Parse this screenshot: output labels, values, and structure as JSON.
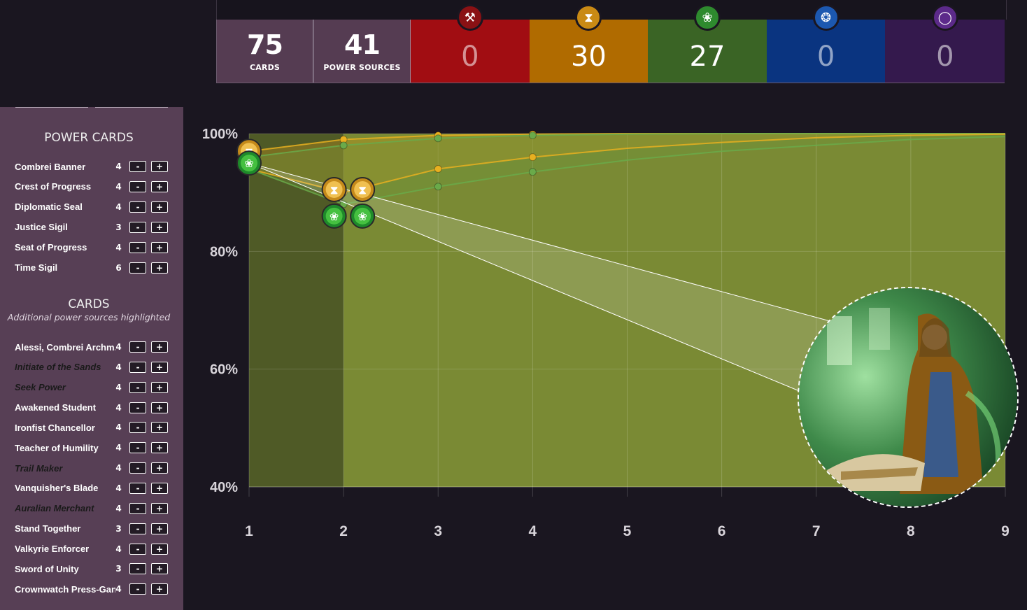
{
  "stats": {
    "cards": {
      "value": "75",
      "label": "CARDS"
    },
    "power_sources": {
      "value": "41",
      "label": "POWER SOURCES"
    }
  },
  "factions": [
    {
      "name": "fire",
      "icon": "hammer-icon",
      "count": "0",
      "color": "#a10d12",
      "icon_color": "#8a1114"
    },
    {
      "name": "time",
      "icon": "hourglass-icon",
      "count": "30",
      "color": "#b06b00",
      "icon_color": "#c98a14"
    },
    {
      "name": "justice",
      "icon": "wings-icon",
      "count": "27",
      "color": "#3a6425",
      "icon_color": "#2e8a2e"
    },
    {
      "name": "primal",
      "icon": "paw-icon",
      "count": "0",
      "color": "#0a3480",
      "icon_color": "#1c58b0"
    },
    {
      "name": "shadow",
      "icon": "moon-icon",
      "count": "0",
      "color": "#34194d",
      "icon_color": "#5c2a8a"
    }
  ],
  "sidebar": {
    "power_title": "POWER CARDS",
    "power_cards": [
      {
        "name": "Combrei Banner",
        "count": "4",
        "italic": false
      },
      {
        "name": "Crest of Progress",
        "count": "4",
        "italic": false
      },
      {
        "name": "Diplomatic Seal",
        "count": "4",
        "italic": false
      },
      {
        "name": "Justice Sigil",
        "count": "3",
        "italic": false
      },
      {
        "name": "Seat of Progress",
        "count": "4",
        "italic": false
      },
      {
        "name": "Time Sigil",
        "count": "6",
        "italic": false
      }
    ],
    "cards_title": "CARDS",
    "cards_subtitle": "Additional power sources highlighted",
    "cards": [
      {
        "name": "Alessi, Combrei Archm...",
        "count": "4",
        "italic": false
      },
      {
        "name": "Initiate of the Sands",
        "count": "4",
        "italic": true
      },
      {
        "name": "Seek Power",
        "count": "4",
        "italic": true
      },
      {
        "name": "Awakened Student",
        "count": "4",
        "italic": false
      },
      {
        "name": "Ironfist Chancellor",
        "count": "4",
        "italic": false
      },
      {
        "name": "Teacher of Humility",
        "count": "4",
        "italic": false
      },
      {
        "name": "Trail Maker",
        "count": "4",
        "italic": true
      },
      {
        "name": "Vanquisher's Blade",
        "count": "4",
        "italic": false
      },
      {
        "name": "Auralian Merchant",
        "count": "4",
        "italic": true
      },
      {
        "name": "Stand Together",
        "count": "3",
        "italic": false
      },
      {
        "name": "Valkyrie Enforcer",
        "count": "4",
        "italic": false
      },
      {
        "name": "Sword of Unity",
        "count": "3",
        "italic": false
      },
      {
        "name": "Crownwatch Press-Gang",
        "count": "4",
        "italic": false
      }
    ],
    "minus_label": "-",
    "plus_label": "+"
  },
  "chart_data": {
    "type": "area",
    "x": [
      1,
      2,
      3,
      4,
      5,
      6,
      7,
      8,
      9
    ],
    "ylim": [
      40,
      100
    ],
    "yticks": [
      "100%",
      "80%",
      "60%",
      "40%"
    ],
    "xticks": [
      "1",
      "2",
      "3",
      "4",
      "5",
      "6",
      "7",
      "8",
      "9"
    ],
    "grid": true,
    "series": [
      {
        "values": [
          97,
          99,
          99.7,
          99.9,
          100,
          100,
          100,
          100,
          100
        ],
        "color": "#e8b020"
      },
      {
        "values": [
          96,
          98,
          99.2,
          99.7,
          99.9,
          100,
          100,
          100,
          100
        ],
        "color": "#6aaa4a"
      },
      {
        "values": [
          94,
          90,
          94,
          96,
          97.5,
          98.5,
          99.3,
          99.7,
          99.9
        ],
        "color": "#e8b020"
      },
      {
        "values": [
          94,
          88,
          91,
          93.5,
          95.5,
          97,
          98,
          99,
          99.5
        ],
        "color": "#6aaa4a"
      }
    ],
    "markers": [
      {
        "x": 1,
        "y": 97,
        "icon": "hourglass-icon"
      },
      {
        "x": 1,
        "y": 95,
        "icon": "wings-icon"
      },
      {
        "x": 1.9,
        "y": 90.5,
        "icon": "hourglass-icon"
      },
      {
        "x": 2.2,
        "y": 90.5,
        "icon": "hourglass-icon"
      },
      {
        "x": 1.9,
        "y": 86,
        "icon": "wings-icon"
      },
      {
        "x": 2.2,
        "y": 86,
        "icon": "wings-icon"
      }
    ]
  }
}
